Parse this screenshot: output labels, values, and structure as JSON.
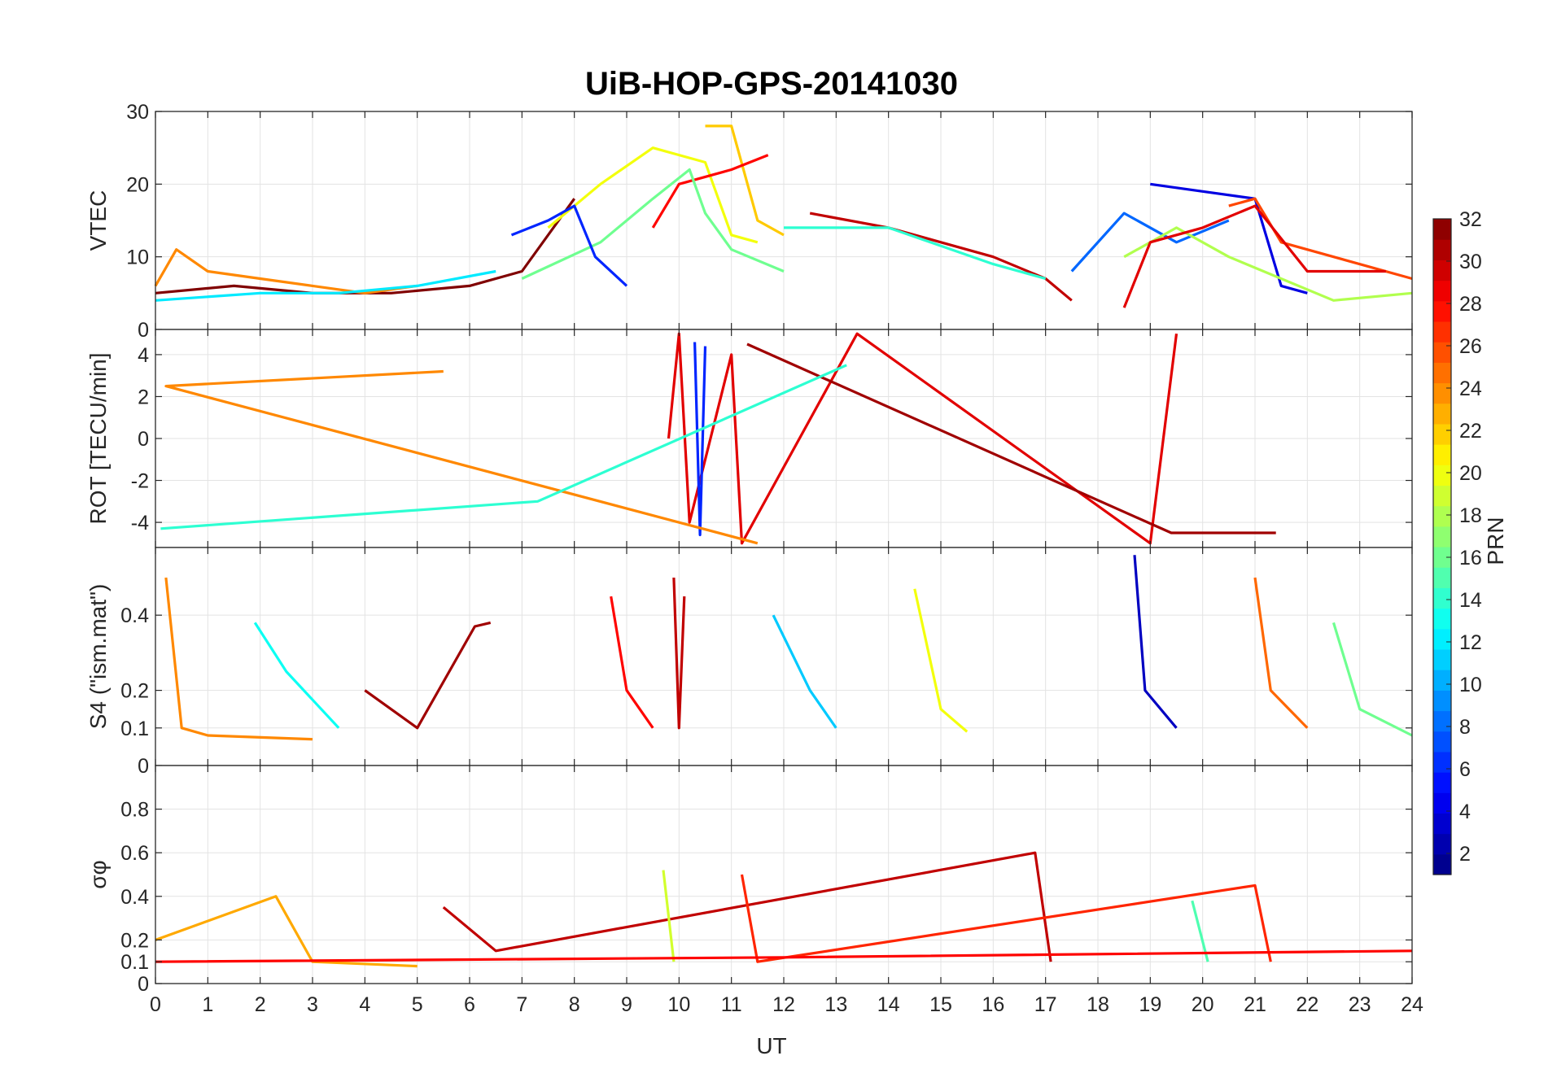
{
  "chart_data": {
    "type": "line",
    "title": "UiB-HOP-GPS-20141030",
    "xlabel": "UT",
    "xlim": [
      0,
      24
    ],
    "xticks": [
      0,
      1,
      2,
      3,
      4,
      5,
      6,
      7,
      8,
      9,
      10,
      11,
      12,
      13,
      14,
      15,
      16,
      17,
      18,
      19,
      20,
      21,
      22,
      23,
      24
    ],
    "grid": true,
    "colormap": "jet",
    "colorbar": {
      "label": "PRN",
      "range": [
        1,
        32
      ],
      "levels": 32,
      "ticks": [
        2,
        4,
        6,
        8,
        10,
        12,
        14,
        16,
        18,
        20,
        22,
        24,
        26,
        28,
        30,
        32
      ],
      "placement": "right"
    },
    "panels": [
      {
        "id": "vtec",
        "ylabel": "VTEC",
        "ylim": [
          0,
          30
        ],
        "yticks": [
          0,
          10,
          20,
          30
        ],
        "series": [
          {
            "prn": 32,
            "points": [
              [
                0,
                5
              ],
              [
                1.5,
                6
              ],
              [
                3,
                5
              ],
              [
                4.5,
                5
              ],
              [
                6,
                6
              ],
              [
                7,
                8
              ],
              [
                8,
                18
              ]
            ]
          },
          {
            "prn": 24,
            "points": [
              [
                0,
                6
              ],
              [
                0.4,
                11
              ],
              [
                1,
                8
              ],
              [
                2,
                7
              ],
              [
                3,
                6
              ],
              [
                4,
                5
              ],
              [
                5,
                6
              ]
            ]
          },
          {
            "prn": 12,
            "points": [
              [
                0,
                4
              ],
              [
                2,
                5
              ],
              [
                3.5,
                5
              ],
              [
                5,
                6
              ],
              [
                6.5,
                8
              ]
            ]
          },
          {
            "prn": 20,
            "points": [
              [
                7.5,
                14
              ],
              [
                8.5,
                20
              ],
              [
                9.5,
                25
              ],
              [
                10.5,
                23
              ],
              [
                11,
                13
              ],
              [
                11.5,
                12
              ]
            ]
          },
          {
            "prn": 22,
            "points": [
              [
                10.5,
                28
              ],
              [
                11,
                28
              ],
              [
                11.5,
                15
              ],
              [
                12,
                13
              ]
            ]
          },
          {
            "prn": 28,
            "points": [
              [
                9.5,
                14
              ],
              [
                10,
                20
              ],
              [
                11,
                22
              ],
              [
                11.7,
                24
              ]
            ]
          },
          {
            "prn": 16,
            "points": [
              [
                7,
                7
              ],
              [
                8.5,
                12
              ],
              [
                9.5,
                18
              ],
              [
                10.2,
                22
              ],
              [
                10.5,
                16
              ],
              [
                11,
                11
              ],
              [
                12,
                8
              ]
            ]
          },
          {
            "prn": 6,
            "points": [
              [
                6.8,
                13
              ],
              [
                7.5,
                15
              ],
              [
                8,
                17
              ],
              [
                8.4,
                10
              ],
              [
                9,
                6
              ]
            ]
          },
          {
            "prn": 30,
            "points": [
              [
                12.5,
                16
              ],
              [
                14,
                14
              ],
              [
                16,
                10
              ],
              [
                17,
                7
              ],
              [
                17.5,
                4
              ]
            ]
          },
          {
            "prn": 14,
            "points": [
              [
                12,
                14
              ],
              [
                14,
                14
              ],
              [
                16,
                9
              ],
              [
                17,
                7
              ]
            ]
          },
          {
            "prn": 8,
            "points": [
              [
                17.5,
                8
              ],
              [
                18.5,
                16
              ],
              [
                19.5,
                12
              ],
              [
                20.5,
                15
              ]
            ]
          },
          {
            "prn": 4,
            "points": [
              [
                19,
                20
              ],
              [
                20,
                19
              ],
              [
                21,
                18
              ],
              [
                21.5,
                6
              ],
              [
                22,
                5
              ]
            ]
          },
          {
            "prn": 26,
            "points": [
              [
                20.5,
                17
              ],
              [
                21,
                18
              ],
              [
                21.5,
                12
              ],
              [
                22.5,
                10
              ],
              [
                24,
                7
              ]
            ]
          },
          {
            "prn": 18,
            "points": [
              [
                18.5,
                10
              ],
              [
                19.5,
                14
              ],
              [
                20.5,
                10
              ],
              [
                22.5,
                4
              ],
              [
                24,
                5
              ]
            ]
          },
          {
            "prn": 29,
            "points": [
              [
                18.5,
                3
              ],
              [
                19,
                12
              ],
              [
                20,
                14
              ],
              [
                21,
                17
              ],
              [
                22,
                8
              ],
              [
                23.5,
                8
              ]
            ]
          }
        ]
      },
      {
        "id": "rot",
        "ylabel": "ROT [TECU/min]",
        "ylim": [
          -5.2,
          5.2
        ],
        "yticks": [
          -4,
          -2,
          0,
          2,
          4
        ],
        "series": [
          {
            "prn": 29,
            "points": [
              [
                9.8,
                0
              ],
              [
                10,
                5
              ],
              [
                10.2,
                -4
              ],
              [
                11,
                4
              ],
              [
                11.2,
                -5
              ],
              [
                13.4,
                5
              ],
              [
                19,
                -5
              ],
              [
                19.5,
                5
              ]
            ]
          },
          {
            "prn": 31,
            "points": [
              [
                11.3,
                4.5
              ],
              [
                19.4,
                -4.5
              ],
              [
                21.4,
                -4.5
              ]
            ]
          },
          {
            "prn": 6,
            "points": [
              [
                10.3,
                4.6
              ],
              [
                10.4,
                -4.6
              ],
              [
                10.5,
                4.4
              ]
            ]
          },
          {
            "prn": 24,
            "points": [
              [
                11.5,
                -5
              ],
              [
                0.2,
                2.5
              ],
              [
                5.5,
                3.2
              ]
            ]
          },
          {
            "prn": 14,
            "points": [
              [
                0.1,
                -4.3
              ],
              [
                7.3,
                -3
              ],
              [
                13.2,
                3.5
              ]
            ]
          }
        ]
      },
      {
        "id": "s4",
        "ylabel": "S4 (\"ism.mat\")",
        "ylim": [
          0,
          0.58
        ],
        "yticks": [
          0,
          0.1,
          0.2,
          0.4
        ],
        "series": [
          {
            "prn": 24,
            "points": [
              [
                0.2,
                0.5
              ],
              [
                0.5,
                0.1
              ],
              [
                1,
                0.08
              ],
              [
                3,
                0.07
              ]
            ]
          },
          {
            "prn": 13,
            "points": [
              [
                1.9,
                0.38
              ],
              [
                2.5,
                0.25
              ],
              [
                3.5,
                0.1
              ]
            ]
          },
          {
            "prn": 31,
            "points": [
              [
                4,
                0.2
              ],
              [
                5,
                0.1
              ],
              [
                6.1,
                0.37
              ],
              [
                6.4,
                0.38
              ]
            ]
          },
          {
            "prn": 28,
            "points": [
              [
                8.7,
                0.45
              ],
              [
                9,
                0.2
              ],
              [
                9.5,
                0.1
              ]
            ]
          },
          {
            "prn": 30,
            "points": [
              [
                9.9,
                0.5
              ],
              [
                10,
                0.1
              ],
              [
                10.1,
                0.45
              ]
            ]
          },
          {
            "prn": 11,
            "points": [
              [
                11.8,
                0.4
              ],
              [
                12.5,
                0.2
              ],
              [
                13,
                0.1
              ]
            ]
          },
          {
            "prn": 20,
            "points": [
              [
                14.5,
                0.47
              ],
              [
                15,
                0.15
              ],
              [
                15.5,
                0.09
              ]
            ]
          },
          {
            "prn": 3,
            "points": [
              [
                18.7,
                0.56
              ],
              [
                18.9,
                0.2
              ],
              [
                19.5,
                0.1
              ]
            ]
          },
          {
            "prn": 25,
            "points": [
              [
                21,
                0.5
              ],
              [
                21.3,
                0.2
              ],
              [
                22,
                0.1
              ]
            ]
          },
          {
            "prn": 16,
            "points": [
              [
                22.5,
                0.38
              ],
              [
                23,
                0.15
              ],
              [
                24,
                0.08
              ]
            ]
          }
        ]
      },
      {
        "id": "sigma_phi",
        "ylabel": "σφ",
        "ylim": [
          0,
          1
        ],
        "yticks": [
          0,
          0.1,
          0.2,
          0.4,
          0.6,
          0.8
        ],
        "series": [
          {
            "prn": 23,
            "points": [
              [
                0,
                0.2
              ],
              [
                2.3,
                0.4
              ],
              [
                3,
                0.1
              ],
              [
                5,
                0.08
              ]
            ]
          },
          {
            "prn": 30,
            "points": [
              [
                5.5,
                0.35
              ],
              [
                6.5,
                0.15
              ],
              [
                16.8,
                0.6
              ],
              [
                17.1,
                0.1
              ]
            ]
          },
          {
            "prn": 19,
            "points": [
              [
                9.7,
                0.52
              ],
              [
                9.9,
                0.1
              ]
            ]
          },
          {
            "prn": 27,
            "points": [
              [
                11.2,
                0.5
              ],
              [
                11.5,
                0.1
              ],
              [
                21,
                0.45
              ],
              [
                21.3,
                0.1
              ]
            ]
          },
          {
            "prn": 15,
            "points": [
              [
                19.8,
                0.38
              ],
              [
                20.1,
                0.1
              ]
            ]
          },
          {
            "prn": 28,
            "points": [
              [
                0,
                0.1
              ],
              [
                12,
                0.12
              ],
              [
                24,
                0.15
              ]
            ]
          }
        ]
      }
    ]
  }
}
